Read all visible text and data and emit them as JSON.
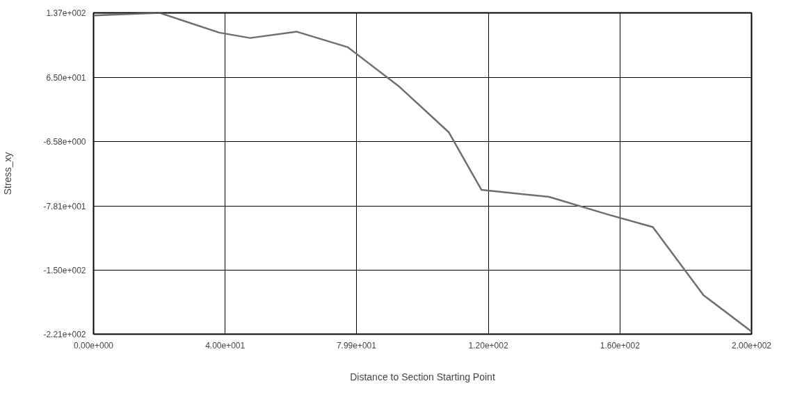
{
  "chart_data": {
    "type": "line",
    "xlabel": "Distance to Section Starting Point",
    "ylabel": "Stress_xy",
    "x": [
      0,
      20.1,
      38.2,
      47.6,
      61.8,
      77.3,
      92.7,
      108,
      117.9,
      138.4,
      156.3,
      170,
      185.4,
      200
    ],
    "series": [
      {
        "color": "#6e6e6e",
        "values": [
          134,
          137,
          115,
          109,
          116,
          98.7,
          55.5,
          3.9,
          -60.2,
          -68,
          -87.6,
          -101.7,
          -177.6,
          -218
        ]
      }
    ],
    "xlim": [
      0,
      200
    ],
    "ylim": [
      -221,
      137
    ],
    "xticks": [
      {
        "value": 0,
        "label": "0.00e+000"
      },
      {
        "value": 40,
        "label": "4.00e+001"
      },
      {
        "value": 79.9,
        "label": "7.99e+001"
      },
      {
        "value": 120,
        "label": "1.20e+002"
      },
      {
        "value": 160,
        "label": "1.60e+002"
      },
      {
        "value": 200,
        "label": "2.00e+002"
      }
    ],
    "yticks": [
      {
        "value": -221,
        "label": "-2.21e+002"
      },
      {
        "value": -150,
        "label": "-1.50e+002"
      },
      {
        "value": -78.1,
        "label": "-7.81e+001"
      },
      {
        "value": -6.58,
        "label": "-6.58e+000"
      },
      {
        "value": 65,
        "label": "6.50e+001"
      },
      {
        "value": 137,
        "label": "1.37e+002"
      }
    ],
    "grid": true,
    "line_style": "solid"
  }
}
